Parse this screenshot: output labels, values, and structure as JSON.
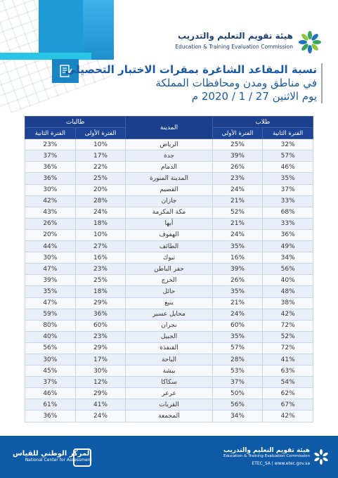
{
  "header": {
    "logo_ar": "هيئة تقويم التعليم والتدريب",
    "logo_en": "Education & Training Evaluation Commission"
  },
  "title": {
    "line1": "نسبة المقاعد الشاغرة بمقرات الاختبار التحصيلي",
    "line2": "في مناطق ومدن ومحافظات المملكة",
    "line3": "يوم الاثنين 27 / 1 / 2020 م"
  },
  "table": {
    "group_male": "طلاب",
    "group_female": "طالبات",
    "col_city": "المدينة",
    "col_period2": "الفترة الثانية",
    "col_period1": "الفترة الأولى",
    "rows": [
      {
        "city": "الرياض",
        "m2": "32%",
        "m1": "25%",
        "f1": "10%",
        "f2": "23%"
      },
      {
        "city": "جدة",
        "m2": "57%",
        "m1": "39%",
        "f1": "17%",
        "f2": "37%"
      },
      {
        "city": "الدمام",
        "m2": "46%",
        "m1": "26%",
        "f1": "22%",
        "f2": "36%"
      },
      {
        "city": "المدينة المنورة",
        "m2": "35%",
        "m1": "23%",
        "f1": "25%",
        "f2": "36%"
      },
      {
        "city": "القصيم",
        "m2": "37%",
        "m1": "24%",
        "f1": "20%",
        "f2": "30%"
      },
      {
        "city": "جازان",
        "m2": "33%",
        "m1": "21%",
        "f1": "28%",
        "f2": "42%"
      },
      {
        "city": "مكة المكرمة",
        "m2": "68%",
        "m1": "52%",
        "f1": "24%",
        "f2": "43%"
      },
      {
        "city": "أبها",
        "m2": "33%",
        "m1": "21%",
        "f1": "18%",
        "f2": "26%"
      },
      {
        "city": "الهفوف",
        "m2": "36%",
        "m1": "24%",
        "f1": "10%",
        "f2": "20%"
      },
      {
        "city": "الطائف",
        "m2": "49%",
        "m1": "35%",
        "f1": "27%",
        "f2": "44%"
      },
      {
        "city": "تبوك",
        "m2": "34%",
        "m1": "16%",
        "f1": "16%",
        "f2": "30%"
      },
      {
        "city": "حفر الباطن",
        "m2": "56%",
        "m1": "39%",
        "f1": "23%",
        "f2": "47%"
      },
      {
        "city": "الخرج",
        "m2": "40%",
        "m1": "26%",
        "f1": "25%",
        "f2": "39%"
      },
      {
        "city": "حائل",
        "m2": "48%",
        "m1": "35%",
        "f1": "18%",
        "f2": "35%"
      },
      {
        "city": "ينبع",
        "m2": "38%",
        "m1": "21%",
        "f1": "29%",
        "f2": "47%"
      },
      {
        "city": "محايل عسير",
        "m2": "42%",
        "m1": "24%",
        "f1": "36%",
        "f2": "59%"
      },
      {
        "city": "نجران",
        "m2": "72%",
        "m1": "60%",
        "f1": "60%",
        "f2": "80%"
      },
      {
        "city": "الجبيل",
        "m2": "52%",
        "m1": "35%",
        "f1": "23%",
        "f2": "40%"
      },
      {
        "city": "القنفذة",
        "m2": "72%",
        "m1": "57%",
        "f1": "29%",
        "f2": "56%"
      },
      {
        "city": "الباحة",
        "m2": "41%",
        "m1": "28%",
        "f1": "17%",
        "f2": "30%"
      },
      {
        "city": "بيشة",
        "m2": "63%",
        "m1": "53%",
        "f1": "30%",
        "f2": "45%"
      },
      {
        "city": "سكاكا",
        "m2": "54%",
        "m1": "37%",
        "f1": "12%",
        "f2": "37%"
      },
      {
        "city": "عرعر",
        "m2": "62%",
        "m1": "50%",
        "f1": "29%",
        "f2": "46%"
      },
      {
        "city": "القريات",
        "m2": "67%",
        "m1": "56%",
        "f1": "41%",
        "f2": "61%"
      },
      {
        "city": "المجمعة",
        "m2": "42%",
        "m1": "34%",
        "f1": "24%",
        "f2": "36%"
      }
    ]
  },
  "footer": {
    "center_ar": "المركز الوطني للقياس",
    "center_en": "National Center for Assessment",
    "etec_ar": "هيئة تقويم التعليم والتدريب",
    "etec_en": "Education & Training Evaluation Commission",
    "social": "ETEC_SA | www.etec.gov.sa"
  },
  "colors": {
    "header_blue": "#1b3f8c",
    "title_blue": "#1a5aa5",
    "footer_blue": "#0e5aa6",
    "accent_cyan": "#29c5e6"
  }
}
